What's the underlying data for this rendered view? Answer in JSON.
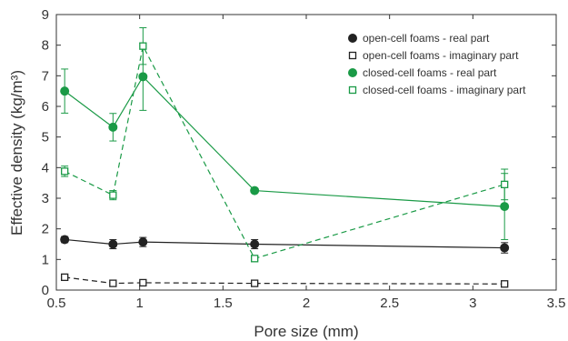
{
  "chart_data": {
    "type": "line",
    "title": "",
    "xlabel": "Pore size (mm)",
    "ylabel": "Effective density (kg/m³)",
    "xlim": [
      0.5,
      3.5
    ],
    "ylim": [
      0,
      9
    ],
    "xticks": [
      "0.5",
      "1",
      "1.5",
      "2",
      "2.5",
      "3",
      "3.5"
    ],
    "yticks": [
      "0",
      "1",
      "2",
      "3",
      "4",
      "5",
      "6",
      "7",
      "8",
      "9"
    ],
    "grid": false,
    "legend_position": "top-right",
    "series": [
      {
        "name": "open-cell foams - real part",
        "color": "#222222",
        "marker": "filled-circle",
        "line": "solid",
        "points": [
          {
            "x": 0.55,
            "y": 1.65,
            "err": 0.1
          },
          {
            "x": 0.84,
            "y": 1.5,
            "err": 0.15
          },
          {
            "x": 1.02,
            "y": 1.57,
            "err": 0.15
          },
          {
            "x": 1.69,
            "y": 1.5,
            "err": 0.15
          },
          {
            "x": 3.19,
            "y": 1.38,
            "err": 0.17
          }
        ]
      },
      {
        "name": "open-cell foams - imaginary part",
        "color": "#222222",
        "marker": "open-square",
        "line": "dashed",
        "points": [
          {
            "x": 0.55,
            "y": 0.42,
            "err": 0.03
          },
          {
            "x": 0.84,
            "y": 0.22,
            "err": 0.03
          },
          {
            "x": 1.02,
            "y": 0.24,
            "err": 0.03
          },
          {
            "x": 1.69,
            "y": 0.22,
            "err": 0.03
          },
          {
            "x": 3.19,
            "y": 0.2,
            "err": 0.03
          }
        ]
      },
      {
        "name": "closed-cell foams - real part",
        "color": "#1a9a46",
        "marker": "filled-circle",
        "line": "solid",
        "points": [
          {
            "x": 0.55,
            "y": 6.5,
            "err": 0.72
          },
          {
            "x": 0.84,
            "y": 5.32,
            "err": 0.45
          },
          {
            "x": 1.02,
            "y": 6.97,
            "err": 1.1
          },
          {
            "x": 1.69,
            "y": 3.25,
            "err": 0.07
          },
          {
            "x": 3.19,
            "y": 2.73,
            "err": 1.08
          }
        ]
      },
      {
        "name": "closed-cell foams - imaginary part",
        "color": "#1a9a46",
        "marker": "open-square",
        "line": "dashed",
        "points": [
          {
            "x": 0.55,
            "y": 3.88,
            "err": 0.17
          },
          {
            "x": 0.84,
            "y": 3.1,
            "err": 0.15
          },
          {
            "x": 1.02,
            "y": 7.97,
            "err": 0.6
          },
          {
            "x": 1.69,
            "y": 1.03,
            "err": 0.06
          },
          {
            "x": 3.19,
            "y": 3.45,
            "err": 0.5
          }
        ]
      }
    ]
  }
}
